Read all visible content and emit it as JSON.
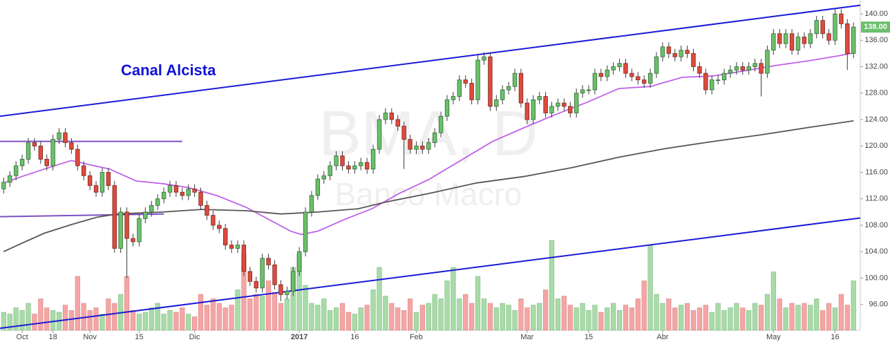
{
  "chart_data": {
    "type": "candlestick",
    "watermark_symbol": "BMA, D",
    "watermark_name": "Banco Macro",
    "annotation": "Canal Alcista",
    "last_label": "138.00",
    "ylim": [
      92.1,
      142.1
    ],
    "xlim": [
      -0.6,
      139.1
    ],
    "volume_lim": [
      0,
      100
    ],
    "grid": false,
    "yticks": [
      {
        "value": 96,
        "label": "96.00"
      },
      {
        "value": 100,
        "label": "100.00"
      },
      {
        "value": 104,
        "label": "104.00"
      },
      {
        "value": 108,
        "label": "108.00"
      },
      {
        "value": 112,
        "label": "112.00"
      },
      {
        "value": 116,
        "label": "116.00"
      },
      {
        "value": 120,
        "label": "120.00"
      },
      {
        "value": 124,
        "label": "124.00"
      },
      {
        "value": 128,
        "label": "128.00"
      },
      {
        "value": 132,
        "label": "132.00"
      },
      {
        "value": 136,
        "label": "136.00"
      },
      {
        "value": 140,
        "label": "140.00"
      }
    ],
    "categories": [
      null,
      null,
      null,
      "Oct",
      null,
      null,
      null,
      null,
      "18",
      null,
      null,
      null,
      null,
      null,
      "Nov",
      null,
      null,
      null,
      null,
      null,
      null,
      null,
      "15",
      null,
      null,
      null,
      null,
      null,
      null,
      null,
      null,
      "Dic",
      null,
      null,
      null,
      null,
      null,
      null,
      null,
      null,
      null,
      null,
      null,
      null,
      null,
      null,
      null,
      null,
      "2017",
      null,
      null,
      null,
      null,
      null,
      null,
      null,
      null,
      "16",
      null,
      null,
      null,
      null,
      null,
      null,
      null,
      null,
      null,
      "Feb",
      null,
      null,
      null,
      null,
      null,
      null,
      null,
      null,
      null,
      null,
      null,
      null,
      null,
      null,
      null,
      null,
      null,
      "Mar",
      null,
      null,
      null,
      null,
      null,
      null,
      null,
      null,
      null,
      "15",
      null,
      null,
      null,
      null,
      null,
      null,
      null,
      null,
      null,
      null,
      null,
      "Abr",
      null,
      null,
      null,
      null,
      null,
      null,
      null,
      null,
      null,
      null,
      null,
      null,
      null,
      null,
      null,
      null,
      null,
      "May",
      null,
      null,
      null,
      null,
      null,
      null,
      null,
      null,
      null,
      "16",
      null,
      null,
      null
    ],
    "series": [
      {
        "up_color": "#6cbf6c",
        "down_color": "#dd4b3e",
        "up_volume_color": "#a8dba8",
        "down_volume_color": "#f6a5a5",
        "open": [
          113.5,
          114.5,
          115.5,
          117,
          118,
          120.5,
          120,
          118,
          117,
          121,
          122,
          120.5,
          119.5,
          117,
          115.5,
          114,
          113,
          116,
          114,
          104.5,
          110,
          106,
          105.5,
          109,
          110,
          111,
          112,
          113,
          114,
          113,
          112.5,
          113.5,
          113,
          111,
          109.5,
          108,
          107.5,
          105,
          104.5,
          105,
          101,
          99.5,
          98.5,
          103,
          102,
          99,
          97.5,
          98,
          101,
          104,
          110,
          112.5,
          115,
          115.5,
          117,
          118.5,
          117,
          116.5,
          117,
          117.5,
          116.5,
          119.5,
          124,
          125,
          124,
          123,
          121,
          119.5,
          120,
          119.5,
          120.5,
          122,
          124.5,
          127,
          127.5,
          130,
          129.5,
          127,
          133,
          133.5,
          126,
          127,
          128.5,
          129,
          131,
          126.5,
          124,
          127,
          127.5,
          125,
          126,
          126.5,
          126,
          125,
          128,
          128.5,
          128.5,
          131,
          130.5,
          131.5,
          132,
          132.5,
          131,
          130.5,
          130,
          129.5,
          131,
          133.5,
          135,
          134,
          133.5,
          134.5,
          134,
          132,
          131,
          128.5,
          130,
          130,
          131,
          131.5,
          132,
          131.5,
          132,
          132.5,
          131,
          134.5,
          137,
          135.5,
          137,
          134.5,
          136.5,
          135.5,
          137,
          139,
          137,
          136,
          140,
          138.5,
          134
        ],
        "high": [
          115.2,
          116.2,
          117.7,
          118.7,
          121.2,
          121.2,
          120.7,
          118.7,
          121.7,
          122.7,
          122.7,
          121.2,
          120.2,
          117.7,
          116.2,
          114.7,
          116.7,
          116.7,
          114.7,
          110.7,
          110.7,
          106.7,
          109.7,
          110.7,
          111.7,
          112.7,
          113.7,
          114.7,
          114.7,
          113.7,
          114.2,
          114.2,
          113.7,
          111.7,
          110.2,
          108.7,
          108.2,
          105.7,
          105.7,
          105.7,
          101.7,
          100.2,
          103.7,
          103.7,
          102.7,
          99.7,
          98.7,
          101.7,
          104.7,
          110.7,
          113.2,
          115.7,
          116.2,
          117.7,
          119.2,
          119.2,
          117.7,
          117.7,
          118.2,
          118.2,
          120.2,
          124.7,
          125.7,
          125.7,
          124.7,
          123.7,
          121.7,
          120.7,
          120.7,
          121.2,
          122.7,
          125.2,
          127.7,
          128.2,
          130.7,
          130.7,
          130.2,
          133.7,
          134.2,
          134.2,
          127.7,
          129.2,
          129.7,
          131.7,
          131.7,
          127.2,
          127.7,
          128.2,
          128.2,
          126.7,
          127.2,
          127.2,
          126.7,
          128.7,
          129.2,
          129.2,
          131.7,
          131.7,
          132.2,
          132.7,
          133.2,
          133.2,
          131.7,
          131.2,
          130.7,
          131.7,
          134.2,
          135.7,
          135.7,
          134.7,
          135.2,
          135.2,
          134.7,
          132.7,
          131.7,
          130.7,
          130.7,
          131.7,
          132.2,
          132.7,
          132.7,
          132.7,
          133.2,
          133.2,
          135.2,
          137.7,
          137.7,
          137.7,
          137.7,
          137.2,
          137.2,
          137.7,
          139.7,
          139.7,
          137.7,
          140.7,
          140.7,
          139.2,
          138.7
        ],
        "low": [
          112.8,
          113.8,
          114.8,
          116.3,
          117.3,
          119.3,
          117.3,
          116.3,
          116.3,
          120.3,
          119.8,
          118.8,
          116.3,
          114.8,
          113.3,
          112.3,
          112.3,
          113.3,
          103.8,
          103.8,
          100,
          104.8,
          104.8,
          108.3,
          109.3,
          110.3,
          111.3,
          112.3,
          112.3,
          111.8,
          111.8,
          112.3,
          110.3,
          108.8,
          107.3,
          106.8,
          104.3,
          103.8,
          103.8,
          100.3,
          98.8,
          97.8,
          97.8,
          101.3,
          98.3,
          96.5,
          96.8,
          97.3,
          100.3,
          103.3,
          109.3,
          111.8,
          114.3,
          114.8,
          116.3,
          116.3,
          115.8,
          115.8,
          116.3,
          115.8,
          115.8,
          118.8,
          123.3,
          123.3,
          122.3,
          116.5,
          118.8,
          118.8,
          118.8,
          118.8,
          119.8,
          121.3,
          123.8,
          126.3,
          126.8,
          128.8,
          126.3,
          126.3,
          132.3,
          125.3,
          125.3,
          126.3,
          127.8,
          128.3,
          125.8,
          123.3,
          123.3,
          126.3,
          124.3,
          124.3,
          125.3,
          125.3,
          124.3,
          124.3,
          127.3,
          127.8,
          127.8,
          129.8,
          129.8,
          130.8,
          131.3,
          130.3,
          129.8,
          129.3,
          128.8,
          128.8,
          130.3,
          132.8,
          133.3,
          132.8,
          132.8,
          133.3,
          131.3,
          130.3,
          127.8,
          127.8,
          129.3,
          129.3,
          130.3,
          130.8,
          130.8,
          130.8,
          131.3,
          127.5,
          130.3,
          133.8,
          134.8,
          134.8,
          133.8,
          133.8,
          134.8,
          134.8,
          136.3,
          136.3,
          135.3,
          135.3,
          137.8,
          131.5,
          133.3
        ],
        "close": [
          114.5,
          115.5,
          117,
          118,
          120.5,
          120,
          118,
          117,
          121,
          122,
          120.5,
          119.5,
          117,
          115.5,
          114,
          113,
          116,
          114,
          104.5,
          110,
          106,
          105.5,
          109,
          110,
          111,
          112,
          113,
          114,
          113,
          112.5,
          113.5,
          113,
          111,
          109.5,
          108,
          107.5,
          105,
          104.5,
          105,
          101,
          99.5,
          98.5,
          103,
          102,
          99,
          97.5,
          98,
          101,
          104,
          110,
          112.5,
          115,
          115.5,
          117,
          118.5,
          117,
          116.5,
          117,
          117.5,
          116.5,
          119.5,
          124,
          125,
          124,
          123,
          121,
          119.5,
          120,
          119.5,
          120.5,
          122,
          124.5,
          127,
          127.5,
          130,
          129.5,
          127,
          133,
          133.5,
          126,
          127,
          128.5,
          129,
          131,
          126.5,
          124,
          127,
          127.5,
          125,
          126,
          126.5,
          126,
          125,
          128,
          128.5,
          128.5,
          131,
          130.5,
          131.5,
          132,
          132.5,
          131,
          130.5,
          130,
          129.5,
          131,
          133.5,
          135,
          134,
          133.5,
          134.5,
          134,
          132,
          131,
          128.5,
          130,
          130,
          131,
          131.5,
          132,
          131.5,
          132,
          132.5,
          131,
          134.5,
          137,
          135.5,
          137,
          134.5,
          136.5,
          135.5,
          137,
          139,
          137,
          136,
          140,
          138.5,
          134,
          138
        ],
        "volume": [
          20,
          18,
          25,
          22,
          30,
          18,
          35,
          25,
          22,
          20,
          28,
          22,
          60,
          30,
          22,
          25,
          18,
          35,
          30,
          40,
          60,
          22,
          18,
          20,
          25,
          30,
          18,
          22,
          20,
          25,
          18,
          15,
          40,
          28,
          35,
          30,
          25,
          28,
          45,
          85,
          35,
          40,
          38,
          55,
          42,
          30,
          35,
          70,
          85,
          50,
          30,
          28,
          35,
          22,
          25,
          30,
          20,
          18,
          25,
          28,
          45,
          70,
          38,
          30,
          25,
          22,
          35,
          20,
          28,
          30,
          40,
          35,
          55,
          70,
          35,
          40,
          30,
          60,
          35,
          30,
          25,
          30,
          28,
          22,
          35,
          25,
          28,
          30,
          45,
          100,
          35,
          38,
          28,
          25,
          30,
          22,
          28,
          20,
          25,
          30,
          22,
          28,
          25,
          35,
          55,
          95,
          40,
          30,
          35,
          25,
          28,
          30,
          22,
          25,
          28,
          20,
          30,
          22,
          25,
          30,
          25,
          22,
          30,
          28,
          40,
          65,
          35,
          25,
          30,
          28,
          30,
          28,
          35,
          22,
          30,
          25,
          40,
          28,
          55
        ]
      }
    ],
    "lines": [
      {
        "color": "#c061e8",
        "x": [
          0,
          3,
          6.6,
          11,
          13.3,
          17.2,
          21.5,
          25.8,
          30,
          34.6,
          39.4,
          43,
          46.6,
          48.3,
          51,
          55.4,
          59.8,
          64.2,
          69,
          74.2,
          79.4,
          84.6,
          89.7,
          94.7,
          99.9,
          105,
          110.2,
          115.3,
          120.4,
          125.5,
          130.7,
          135.9,
          138
        ],
        "values": [
          114.4,
          115.4,
          116.5,
          117.8,
          117.3,
          116.5,
          114.7,
          114.3,
          113.7,
          112.5,
          110.7,
          108.9,
          107.1,
          106.6,
          107.1,
          108.9,
          110.5,
          112.8,
          114.9,
          117.8,
          120.7,
          122.8,
          124.8,
          126.6,
          128.7,
          129,
          130.4,
          130.6,
          131.4,
          132.2,
          132.9,
          133.7,
          134.1
        ]
      },
      {
        "color": "#555555",
        "x": [
          0,
          2.3,
          6.6,
          11,
          15.1,
          18.4,
          25.8,
          32.2,
          39.4,
          45,
          51,
          57.6,
          62,
          69,
          76.8,
          84.6,
          92.2,
          99.9,
          107.4,
          115.3,
          123.1,
          130.7,
          138
        ],
        "values": [
          104,
          105,
          106.8,
          108.1,
          109.2,
          109.7,
          110,
          110.4,
          110.2,
          109.7,
          110,
          110.5,
          111.5,
          112.8,
          114.4,
          115.4,
          116.7,
          118.3,
          119.6,
          120.7,
          121.7,
          122.8,
          123.8
        ]
      }
    ],
    "trendlines": [
      {
        "color": "#1a1ad6",
        "x": [
          -0.6,
          139.1
        ],
        "values": [
          124.5,
          141.3
        ]
      },
      {
        "color": "#1a1ad6",
        "x": [
          -0.6,
          139.1
        ],
        "values": [
          92.4,
          109.1
        ]
      },
      {
        "color": "#7b4fc4",
        "x": [
          -0.6,
          29
        ],
        "values": [
          120.7,
          120.7
        ]
      },
      {
        "color": "#7b4fc4",
        "x": [
          -0.6,
          26
        ],
        "values": [
          109.3,
          109.7
        ]
      }
    ]
  }
}
